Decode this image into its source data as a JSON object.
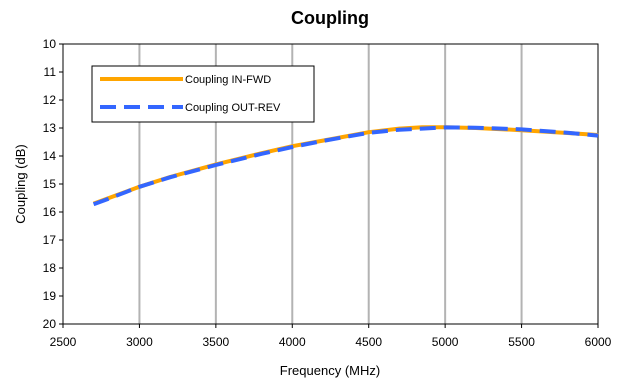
{
  "chart_data": {
    "type": "line",
    "title": "Coupling",
    "xlabel": "Frequency (MHz)",
    "ylabel": "Coupling (dB)",
    "xlim": [
      2500,
      6000
    ],
    "ylim": [
      10,
      20
    ],
    "y_inverted": true,
    "x_ticks": [
      2500,
      3000,
      3500,
      4000,
      4500,
      5000,
      5500,
      6000
    ],
    "y_ticks": [
      10,
      11,
      12,
      13,
      14,
      15,
      16,
      17,
      18,
      19,
      20
    ],
    "grid": "vertical",
    "legend_position": "top-left",
    "series": [
      {
        "name": "Coupling IN-FWD",
        "color": "#FFA500",
        "style": "solid",
        "x": [
          2700,
          2800,
          3000,
          3200,
          3500,
          3800,
          4000,
          4200,
          4500,
          4700,
          4850,
          5000,
          5200,
          5500,
          5800,
          6000
        ],
        "y": [
          15.7,
          15.5,
          15.1,
          14.75,
          14.3,
          13.9,
          13.65,
          13.45,
          13.15,
          13.02,
          12.97,
          12.97,
          13.0,
          13.08,
          13.18,
          13.25
        ]
      },
      {
        "name": "Coupling OUT-REV",
        "color": "#3366FF",
        "style": "dashed",
        "x": [
          2700,
          2800,
          3000,
          3200,
          3500,
          3800,
          4000,
          4200,
          4500,
          4700,
          4850,
          5000,
          5200,
          5500,
          5800,
          6000
        ],
        "y": [
          15.72,
          15.52,
          15.1,
          14.76,
          14.32,
          13.92,
          13.68,
          13.46,
          13.17,
          13.06,
          13.02,
          12.98,
          12.99,
          13.05,
          13.17,
          13.27
        ]
      }
    ]
  }
}
